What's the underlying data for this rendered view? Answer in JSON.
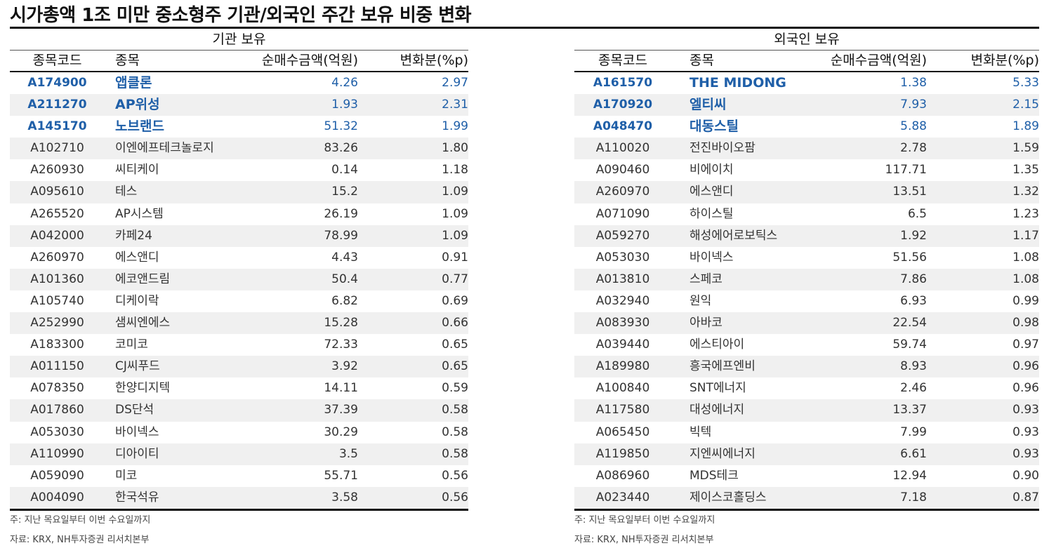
{
  "title": "시가총액 1조 미만 중소형주 기관/외국인 주간 보유 비중 변화",
  "columns": {
    "code": "종목코드",
    "name": "종목",
    "amount": "순매수금액(억원)",
    "change": "변화분(%p)"
  },
  "institution": {
    "title": "기관 보유",
    "rows": [
      {
        "code": "A174900",
        "name": "앱클론",
        "amount": "4.26",
        "change": "2.97",
        "highlight": true
      },
      {
        "code": "A211270",
        "name": "AP위성",
        "amount": "1.93",
        "change": "2.31",
        "highlight": true
      },
      {
        "code": "A145170",
        "name": "노브랜드",
        "amount": "51.32",
        "change": "1.99",
        "highlight": true
      },
      {
        "code": "A102710",
        "name": "이엔에프테크놀로지",
        "amount": "83.26",
        "change": "1.80",
        "highlight": false
      },
      {
        "code": "A260930",
        "name": "씨티케이",
        "amount": "0.14",
        "change": "1.18",
        "highlight": false
      },
      {
        "code": "A095610",
        "name": "테스",
        "amount": "15.2",
        "change": "1.09",
        "highlight": false
      },
      {
        "code": "A265520",
        "name": "AP시스템",
        "amount": "26.19",
        "change": "1.09",
        "highlight": false
      },
      {
        "code": "A042000",
        "name": "카페24",
        "amount": "78.99",
        "change": "1.09",
        "highlight": false
      },
      {
        "code": "A260970",
        "name": "에스앤디",
        "amount": "4.43",
        "change": "0.91",
        "highlight": false
      },
      {
        "code": "A101360",
        "name": "에코앤드림",
        "amount": "50.4",
        "change": "0.77",
        "highlight": false
      },
      {
        "code": "A105740",
        "name": "디케이락",
        "amount": "6.82",
        "change": "0.69",
        "highlight": false
      },
      {
        "code": "A252990",
        "name": "샘씨엔에스",
        "amount": "15.28",
        "change": "0.66",
        "highlight": false
      },
      {
        "code": "A183300",
        "name": "코미코",
        "amount": "72.33",
        "change": "0.65",
        "highlight": false
      },
      {
        "code": "A011150",
        "name": "CJ씨푸드",
        "amount": "3.92",
        "change": "0.65",
        "highlight": false
      },
      {
        "code": "A078350",
        "name": "한양디지텍",
        "amount": "14.11",
        "change": "0.59",
        "highlight": false
      },
      {
        "code": "A017860",
        "name": "DS단석",
        "amount": "37.39",
        "change": "0.58",
        "highlight": false
      },
      {
        "code": "A053030",
        "name": "바이넥스",
        "amount": "30.29",
        "change": "0.58",
        "highlight": false
      },
      {
        "code": "A110990",
        "name": "디아이티",
        "amount": "3.5",
        "change": "0.58",
        "highlight": false
      },
      {
        "code": "A059090",
        "name": "미코",
        "amount": "55.71",
        "change": "0.56",
        "highlight": false
      },
      {
        "code": "A004090",
        "name": "한국석유",
        "amount": "3.58",
        "change": "0.56",
        "highlight": false
      }
    ],
    "note": "주: 지난 목요일부터 이번 수요일까지",
    "source": "자료: KRX, NH투자증권 리서치본부"
  },
  "foreign": {
    "title": "외국인 보유",
    "rows": [
      {
        "code": "A161570",
        "name": "THE MIDONG",
        "amount": "1.38",
        "change": "5.33",
        "highlight": true
      },
      {
        "code": "A170920",
        "name": "엘티씨",
        "amount": "7.93",
        "change": "2.15",
        "highlight": true
      },
      {
        "code": "A048470",
        "name": "대동스틸",
        "amount": "5.88",
        "change": "1.89",
        "highlight": true
      },
      {
        "code": "A110020",
        "name": "전진바이오팜",
        "amount": "2.78",
        "change": "1.59",
        "highlight": false
      },
      {
        "code": "A090460",
        "name": "비에이치",
        "amount": "117.71",
        "change": "1.35",
        "highlight": false
      },
      {
        "code": "A260970",
        "name": "에스앤디",
        "amount": "13.51",
        "change": "1.32",
        "highlight": false
      },
      {
        "code": "A071090",
        "name": "하이스틸",
        "amount": "6.5",
        "change": "1.23",
        "highlight": false
      },
      {
        "code": "A059270",
        "name": "해성에어로보틱스",
        "amount": "1.92",
        "change": "1.17",
        "highlight": false
      },
      {
        "code": "A053030",
        "name": "바이넥스",
        "amount": "51.56",
        "change": "1.08",
        "highlight": false
      },
      {
        "code": "A013810",
        "name": "스페코",
        "amount": "7.86",
        "change": "1.08",
        "highlight": false
      },
      {
        "code": "A032940",
        "name": "원익",
        "amount": "6.93",
        "change": "0.99",
        "highlight": false
      },
      {
        "code": "A083930",
        "name": "아바코",
        "amount": "22.54",
        "change": "0.98",
        "highlight": false
      },
      {
        "code": "A039440",
        "name": "에스티아이",
        "amount": "59.74",
        "change": "0.97",
        "highlight": false
      },
      {
        "code": "A189980",
        "name": "흥국에프엔비",
        "amount": "8.93",
        "change": "0.96",
        "highlight": false
      },
      {
        "code": "A100840",
        "name": "SNT에너지",
        "amount": "2.46",
        "change": "0.96",
        "highlight": false
      },
      {
        "code": "A117580",
        "name": "대성에너지",
        "amount": "13.37",
        "change": "0.93",
        "highlight": false
      },
      {
        "code": "A065450",
        "name": "빅텍",
        "amount": "7.99",
        "change": "0.93",
        "highlight": false
      },
      {
        "code": "A119850",
        "name": "지엔씨에너지",
        "amount": "6.61",
        "change": "0.93",
        "highlight": false
      },
      {
        "code": "A086960",
        "name": "MDS테크",
        "amount": "12.94",
        "change": "0.90",
        "highlight": false
      },
      {
        "code": "A023440",
        "name": "제이스코홀딩스",
        "amount": "7.18",
        "change": "0.87",
        "highlight": false
      }
    ],
    "note": "주: 지난 목요일부터 이번 수요일까지",
    "source": "자료: KRX, NH투자증권 리서치본부"
  },
  "colors": {
    "highlight": "#1f5fa8",
    "shade": "#f0f0f0",
    "rule": "#111111"
  }
}
